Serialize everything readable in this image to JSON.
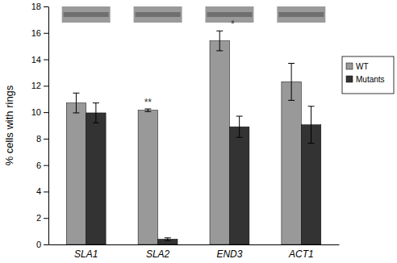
{
  "chart_data": {
    "type": "bar",
    "y_label": "% cells with rings",
    "categories": [
      "SLA1",
      "SLA2",
      "END3",
      "ACT1"
    ],
    "series": [
      {
        "name": "WT",
        "color": "#999999",
        "values": [
          10.7,
          10.15,
          15.4,
          12.3
        ],
        "errors": [
          0.75,
          0.1,
          0.75,
          1.4
        ]
      },
      {
        "name": "Mutants",
        "color": "#333333",
        "values": [
          9.95,
          0.4,
          8.9,
          9.05
        ],
        "errors": [
          0.75,
          0.1,
          0.8,
          1.4
        ]
      }
    ],
    "ylim": [
      0,
      18
    ],
    "yticks": [
      0,
      2,
      4,
      6,
      8,
      10,
      12,
      14,
      16,
      18
    ],
    "legend": "upper right",
    "annotations": [
      {
        "text": "**",
        "category": "SLA2",
        "series": "WT"
      },
      {
        "text": "*",
        "category": "END3",
        "series": "WT"
      }
    ]
  }
}
